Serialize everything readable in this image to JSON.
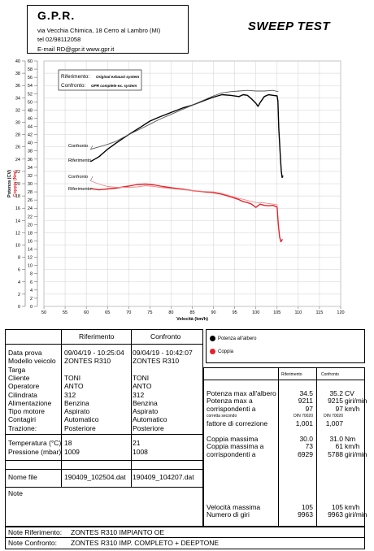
{
  "header": {
    "brand": "G.P.R.",
    "address": "via Vecchia Chimica, 18 Cerro al Lambro (MI)",
    "phone": "tel 02/98112058",
    "contact": "E-mail RD@gpr.it   www.gpr.it",
    "test_title": "SWEEP TEST"
  },
  "chart_data": {
    "type": "line",
    "xlabel": "Velocità (km/h)",
    "ylabel_power": "Potenza (CV)",
    "ylabel_torque": "Coppia (Nm)",
    "x_ticks": [
      50,
      55,
      60,
      65,
      70,
      75,
      80,
      85,
      90,
      95,
      100,
      105,
      110,
      115,
      120
    ],
    "xlim": [
      50,
      120
    ],
    "power_ticks": [
      0,
      2,
      4,
      6,
      8,
      10,
      12,
      14,
      16,
      18,
      20,
      22,
      24,
      26,
      28,
      30,
      32,
      34,
      36,
      38,
      40
    ],
    "power_ylim": [
      0,
      40
    ],
    "torque_ticks": [
      0,
      2,
      4,
      6,
      8,
      10,
      12,
      14,
      16,
      18,
      20,
      22,
      24,
      26,
      28,
      30,
      32,
      34,
      36,
      38,
      40,
      42,
      44,
      46,
      48,
      50,
      52,
      54,
      56,
      58,
      60
    ],
    "torque_ylim": [
      0,
      60
    ],
    "legend_box": {
      "ref_label": "Riferimento:",
      "ref_value": "Original exhaust system",
      "cmp_label": "Confronto:",
      "cmp_value": "GPR complete ex. system"
    },
    "curve_labels": {
      "power_cmp": "Confronto",
      "power_ref": "Riferimento",
      "torque_cmp": "Confronto",
      "torque_ref": "Riferimento"
    },
    "series": [
      {
        "name": "Potenza all'albero",
        "group": "power",
        "role": "ref",
        "color": "#000000",
        "x": [
          61,
          63,
          65,
          67,
          70,
          73,
          75,
          77,
          80,
          83,
          85,
          88,
          90,
          92,
          94,
          96,
          97,
          98,
          99,
          100,
          100.5,
          101,
          102,
          103,
          104,
          105,
          105.2,
          105.4,
          105.8,
          106,
          106.2,
          106.4
        ],
        "y": [
          23.6,
          24.4,
          25.6,
          26.6,
          28.0,
          29.3,
          30.2,
          30.8,
          31.6,
          32.4,
          32.8,
          33.6,
          34.1,
          34.5,
          34.4,
          34.2,
          34.5,
          34.4,
          33.8,
          33.1,
          32.6,
          33.2,
          34.2,
          34.5,
          34.4,
          34.3,
          33.5,
          29.0,
          24.0,
          22.0,
          21.0,
          21.3
        ]
      },
      {
        "name": "Potenza all'albero",
        "group": "power",
        "role": "cmp",
        "color": "#555555",
        "x": [
          61,
          63,
          65,
          67,
          70,
          73,
          75,
          77,
          80,
          83,
          85,
          88,
          90,
          92,
          94,
          96,
          98,
          100,
          102,
          104,
          105.3
        ],
        "y": [
          25.6,
          26.0,
          26.4,
          26.9,
          28.0,
          29.0,
          29.7,
          30.4,
          31.3,
          32.2,
          32.8,
          33.7,
          34.3,
          34.8,
          35.0,
          35.1,
          35.2,
          35.1,
          35.1,
          35.2,
          35.0
        ]
      },
      {
        "name": "Coppia",
        "group": "torque",
        "role": "ref",
        "color": "#e3242b",
        "x": [
          61,
          63,
          65,
          67,
          70,
          72,
          74,
          76,
          78,
          80,
          83,
          85,
          88,
          90,
          92,
          94,
          96,
          97,
          98,
          99,
          100,
          101,
          102,
          103,
          104,
          105,
          105.3,
          105.6,
          105.9,
          106.1,
          106.3
        ],
        "y": [
          28.8,
          28.5,
          28.7,
          28.9,
          29.4,
          29.8,
          29.9,
          29.7,
          29.3,
          29.0,
          28.6,
          28.3,
          28.0,
          27.8,
          27.4,
          26.8,
          26.1,
          25.6,
          25.4,
          25.0,
          24.2,
          25.0,
          24.7,
          24.6,
          24.7,
          24.3,
          20.0,
          17.0,
          15.8,
          16.2,
          16.4
        ]
      },
      {
        "name": "Coppia",
        "group": "torque",
        "role": "cmp",
        "color": "#f08a8a",
        "x": [
          61,
          63,
          65,
          67,
          70,
          72,
          74,
          76,
          78,
          80,
          83,
          85,
          88,
          90,
          92,
          94,
          96,
          98,
          100,
          102,
          104,
          105.3
        ],
        "y": [
          30.7,
          29.9,
          29.3,
          29.1,
          29.1,
          29.2,
          29.5,
          29.3,
          29.0,
          28.8,
          28.5,
          28.3,
          28.1,
          28.0,
          27.6,
          27.0,
          26.4,
          25.9,
          25.4,
          25.3,
          25.0,
          24.8
        ]
      }
    ]
  },
  "legend": {
    "power_label": "Potenza all'albero",
    "power_color": "#000000",
    "torque_label": "Coppia",
    "torque_color": "#e3242b"
  },
  "info_table": {
    "col_ref": "Riferimento",
    "col_cmp": "Confronto",
    "rows": [
      {
        "label": "Data prova",
        "ref": "09/04/19 - 10:25:04",
        "cmp": "09/04/19 - 10:42:07"
      },
      {
        "label": "Modello veicolo",
        "ref": "ZONTES R310",
        "cmp": "ZONTES R310"
      },
      {
        "label": "Targa",
        "ref": "",
        "cmp": ""
      },
      {
        "label": "Cliente",
        "ref": "TONI",
        "cmp": "TONI"
      },
      {
        "label": "Operatore",
        "ref": "ANTO",
        "cmp": "ANTO"
      },
      {
        "label": "Cilindrata",
        "ref": "312",
        "cmp": "312"
      },
      {
        "label": "Alimentazione",
        "ref": "Benzina",
        "cmp": "Benzina"
      },
      {
        "label": "Tipo motore",
        "ref": "Aspirato",
        "cmp": "Aspirato"
      },
      {
        "label": "Contagiri",
        "ref": "Automatico",
        "cmp": "Automatico"
      },
      {
        "label": "Trazione:",
        "ref": "Posteriore",
        "cmp": "Posteriore"
      }
    ],
    "env_rows": [
      {
        "label": "Temperatura (°C)",
        "ref": "18",
        "cmp": "21"
      },
      {
        "label": "Pressione (mbar)",
        "ref": "1009",
        "cmp": "1008"
      }
    ],
    "file_label": "Nome file",
    "file_ref": "190409_102504.dat",
    "file_cmp": "190409_104207.dat",
    "note_label": "Note"
  },
  "results": {
    "col_ref": "Riferimento",
    "col_cmp": "Confronto",
    "power_rows": [
      {
        "label": "Potenza max all'albero",
        "ref": "34.5",
        "cmp": "35.2",
        "unit": "CV"
      },
      {
        "label": "Potenza max a",
        "ref": "9211",
        "cmp": "9215",
        "unit": "giri/min"
      },
      {
        "label": "corrispondenti a",
        "ref": "97",
        "cmp": "97",
        "unit": "km/h"
      }
    ],
    "correction_label": "corretta secondo",
    "correction_ref": "DIN 70020",
    "correction_cmp": "DIN 70020",
    "factor_label": "fattore di correzione",
    "factor_ref": "1,001",
    "factor_cmp": "1,007",
    "torque_rows": [
      {
        "label": "Coppia massima",
        "ref": "30.0",
        "cmp": "31.0",
        "unit": "Nm"
      },
      {
        "label": "Coppia massima a",
        "ref": "73",
        "cmp": "61",
        "unit": "km/h"
      },
      {
        "label": "corrispondenti a",
        "ref": "6929",
        "cmp": "5788",
        "unit": "giri/min"
      }
    ],
    "speed_rows": [
      {
        "label": "Velocità massima",
        "ref": "105",
        "cmp": "105",
        "unit": "km/h"
      },
      {
        "label": "Numero di giri",
        "ref": "9963",
        "cmp": "9963",
        "unit": "giri/min"
      }
    ]
  },
  "notes": {
    "ref_label": "Note Riferimento:",
    "ref_value": "ZONTES R310 IMPIANTO OE",
    "cmp_label": "Note Confronto:",
    "cmp_value": "ZONTES R310 IMP. COMPLETO + DEEPTONE"
  }
}
